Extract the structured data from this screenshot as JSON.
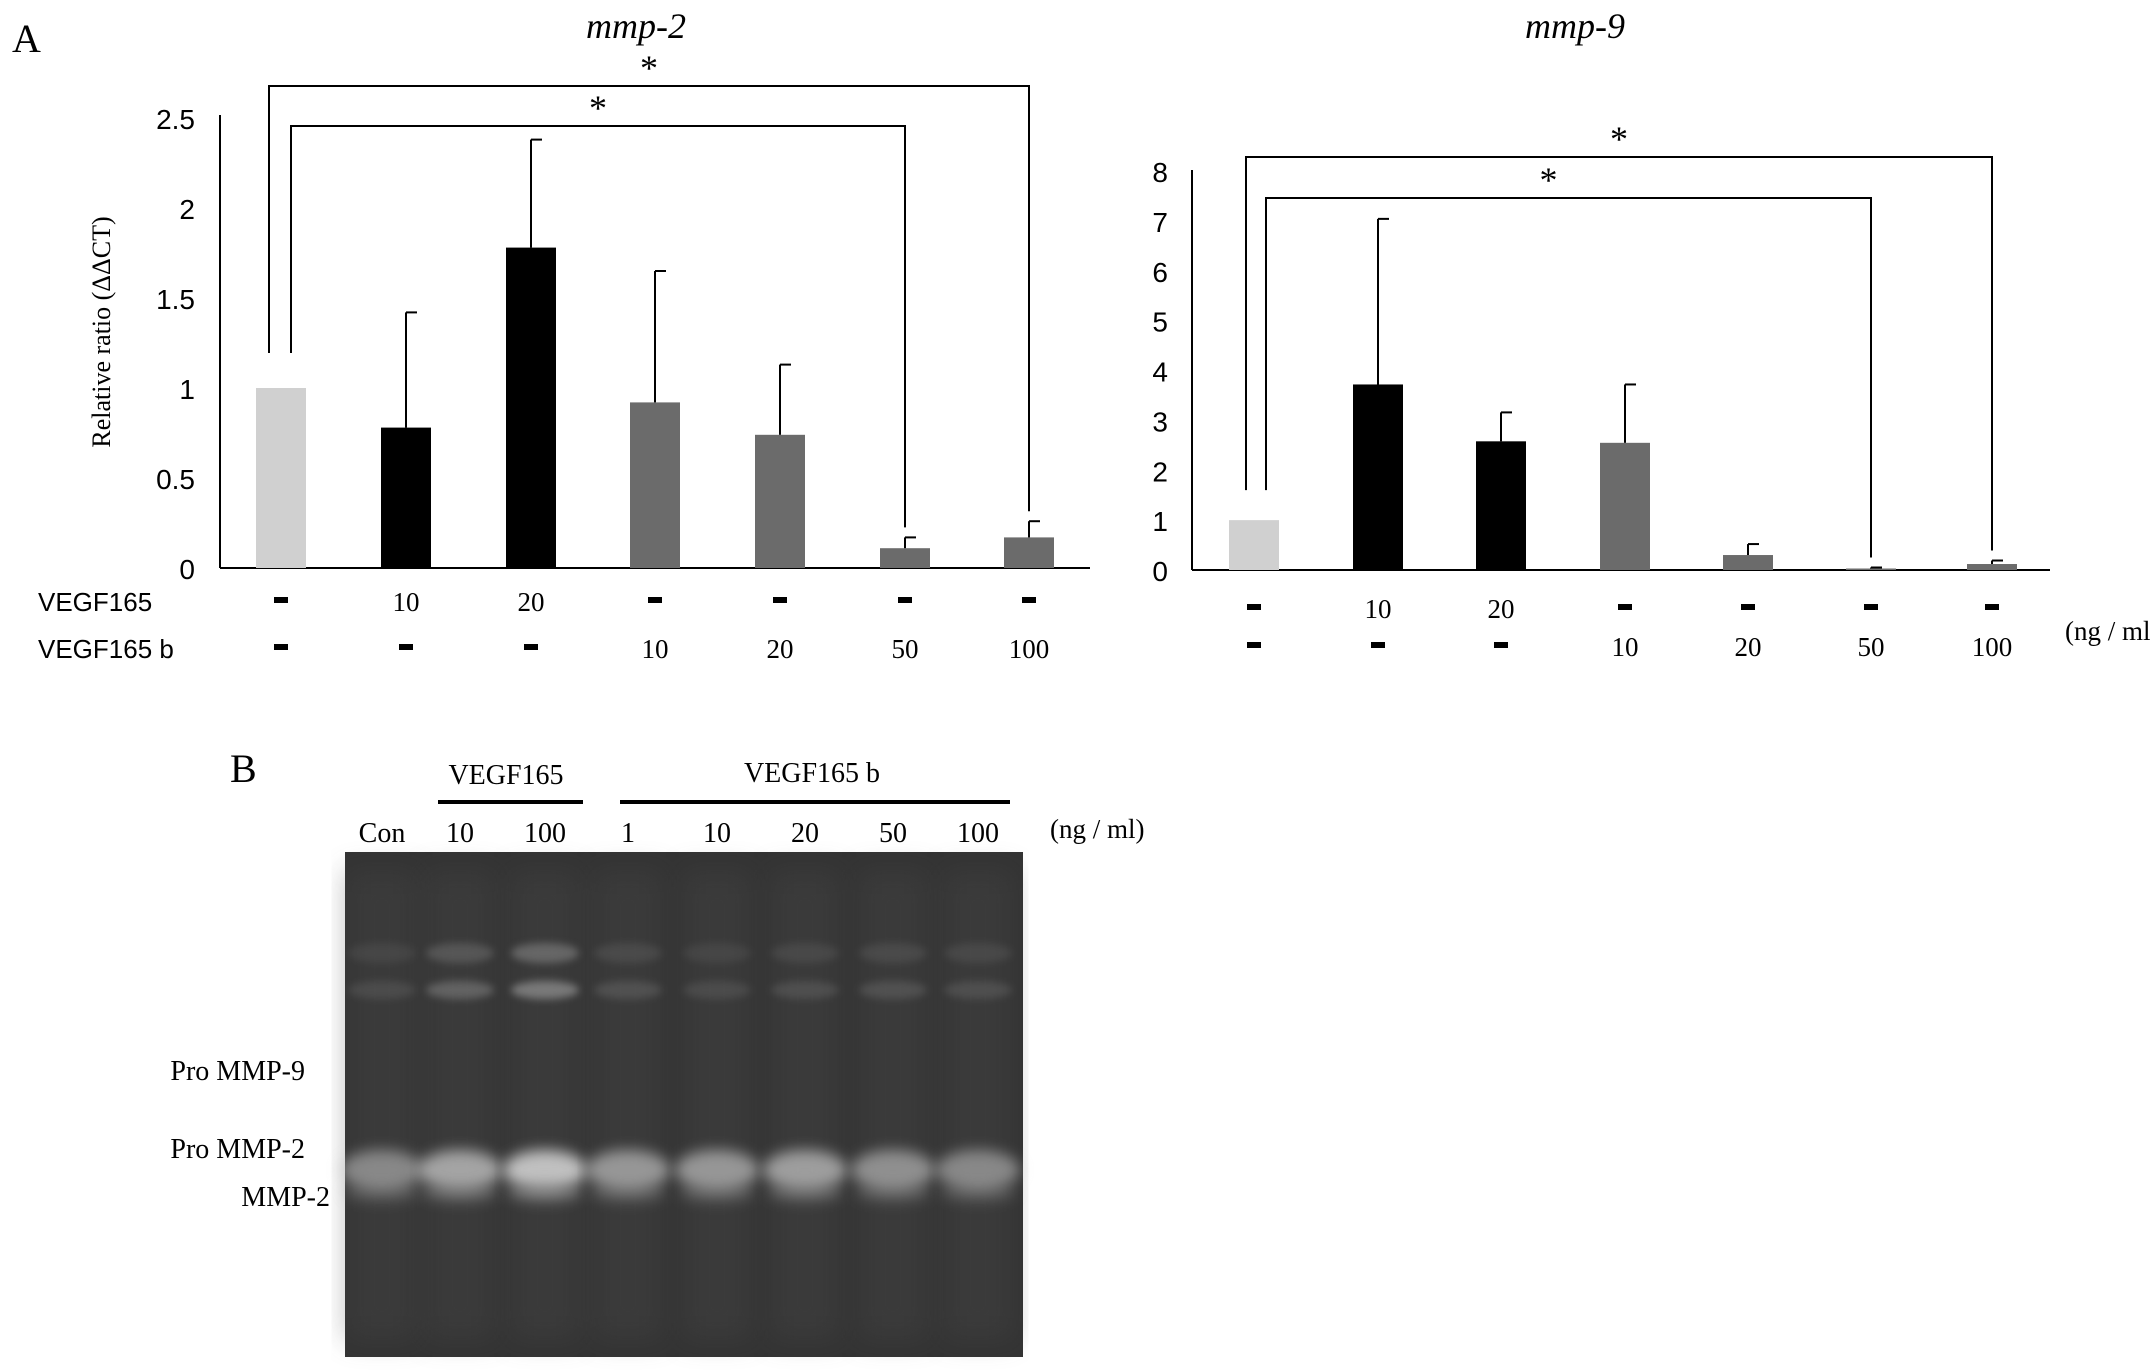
{
  "panel_a_label": "A",
  "panel_b_label": "B",
  "chart_data": [
    {
      "type": "bar",
      "title": "mmp-2",
      "ylabel": "Relative ratio (ΔΔCT)",
      "ylim": [
        0,
        2.5
      ],
      "yticks": [
        "0",
        "0.5",
        "1",
        "1.5",
        "2",
        "2.5"
      ],
      "ytick_values": [
        0,
        0.5,
        1,
        1.5,
        2,
        2.5
      ],
      "row_labels": [
        "VEGF165",
        "VEGF165 b"
      ],
      "vegf165_row": [
        "-",
        "10",
        "20",
        "-",
        "-",
        "-",
        "-"
      ],
      "vegf165b_row": [
        "-",
        "-",
        "-",
        "10",
        "20",
        "50",
        "100"
      ],
      "values": [
        1.0,
        0.78,
        1.78,
        0.92,
        0.74,
        0.11,
        0.17
      ],
      "errors": [
        0.0,
        0.64,
        0.6,
        0.73,
        0.39,
        0.06,
        0.09
      ],
      "colors": [
        "#d0d0d0",
        "#000000",
        "#000000",
        "#6b6b6b",
        "#6b6b6b",
        "#6b6b6b",
        "#6b6b6b"
      ],
      "significance": [
        {
          "from": 0,
          "to": 5,
          "label": "*"
        },
        {
          "from": 0,
          "to": 6,
          "label": "*"
        }
      ]
    },
    {
      "type": "bar",
      "title": "mmp-9",
      "ylabel": "",
      "ylim": [
        0,
        8
      ],
      "yticks": [
        "0",
        "1",
        "2",
        "3",
        "4",
        "5",
        "6",
        "7",
        "8"
      ],
      "ytick_values": [
        0,
        1,
        2,
        3,
        4,
        5,
        6,
        7,
        8
      ],
      "vegf165_row": [
        "-",
        "10",
        "20",
        "-",
        "-",
        "-",
        "-"
      ],
      "vegf165b_row": [
        "-",
        "-",
        "-",
        "10",
        "20",
        "50",
        "100"
      ],
      "unit_label": "(ng / ml)",
      "values": [
        1.0,
        3.72,
        2.58,
        2.55,
        0.3,
        0.03,
        0.12
      ],
      "errors": [
        0.0,
        3.32,
        0.58,
        1.17,
        0.22,
        0.02,
        0.07
      ],
      "colors": [
        "#d0d0d0",
        "#000000",
        "#000000",
        "#6b6b6b",
        "#6b6b6b",
        "#6b6b6b",
        "#6b6b6b"
      ],
      "significance": [
        {
          "from": 0,
          "to": 5,
          "label": "*"
        },
        {
          "from": 0,
          "to": 6,
          "label": "*"
        }
      ]
    }
  ],
  "gel": {
    "group1_label": "VEGF165",
    "group2_label": "VEGF165 b",
    "lanes": [
      "Con",
      "10",
      "100",
      "1",
      "10",
      "20",
      "50",
      "100"
    ],
    "unit_label": "(ng / ml)",
    "band_labels": [
      "Pro MMP-9",
      "Pro MMP-2",
      "MMP-2"
    ]
  }
}
